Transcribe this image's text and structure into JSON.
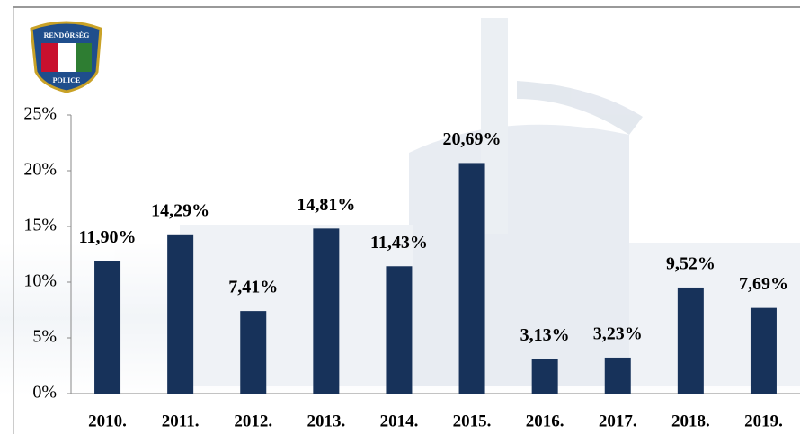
{
  "chart_data": {
    "type": "bar",
    "logo": {
      "top": "RENDŐRSÉG",
      "bottom": "POLICE"
    },
    "categories": [
      "2010.",
      "2011.",
      "2012.",
      "2013.",
      "2014.",
      "2015.",
      "2016.",
      "2017.",
      "2018.",
      "2019."
    ],
    "values": [
      11.9,
      14.29,
      7.41,
      14.81,
      11.43,
      20.69,
      3.13,
      3.23,
      9.52,
      7.69
    ],
    "value_labels": [
      "11,90%",
      "14,29%",
      "7,41%",
      "14,81%",
      "11,43%",
      "20,69%",
      "3,13%",
      "3,23%",
      "9,52%",
      "7,69%"
    ],
    "color": "#17325a",
    "ylim": [
      0,
      25
    ],
    "yticks": [
      {
        "value": 0,
        "label": "0%"
      },
      {
        "value": 5,
        "label": "5%"
      },
      {
        "value": 10,
        "label": "10%"
      },
      {
        "value": 15,
        "label": "15%"
      },
      {
        "value": 20,
        "label": "20%"
      },
      {
        "value": 25,
        "label": "25%"
      }
    ]
  }
}
